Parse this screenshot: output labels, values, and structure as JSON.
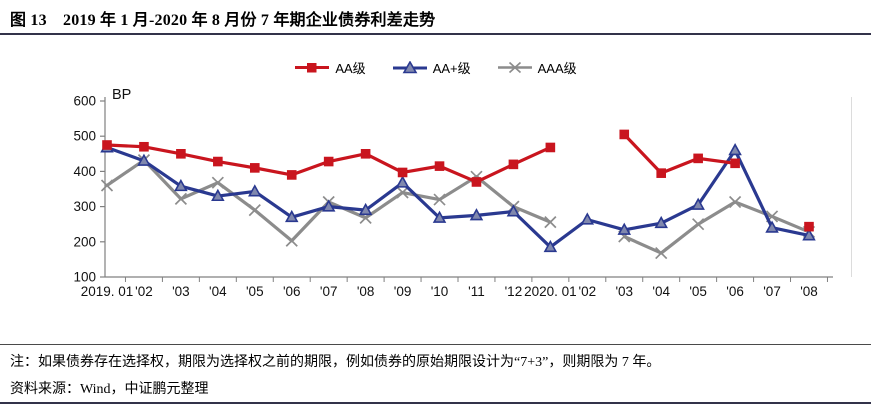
{
  "title": "图 13　2019 年 1 月-2020 年 8 月份 7 年期企业债券利差走势",
  "note": "注：如果债券存在选择权，期限为选择权之前的期限，例如债券的原始期限设计为“7+3”，则期限为 7 年。",
  "source": "资料来源：Wind，中证鹏元整理",
  "chart_data": {
    "type": "line",
    "title": "",
    "ylabel": "BP",
    "xlabel": "",
    "ylim": [
      100,
      600
    ],
    "yticks": [
      100,
      200,
      300,
      400,
      500,
      600
    ],
    "grid": false,
    "legend_position": "top",
    "categories": [
      "2019.01",
      "2019.02",
      "2019.03",
      "2019.04",
      "2019.05",
      "2019.06",
      "2019.07",
      "2019.08",
      "2019.09",
      "2019.10",
      "2019.11",
      "2019.12",
      "2020.01",
      "2020.02",
      "2020.03",
      "2020.04",
      "2020.05",
      "2020.06",
      "2020.07",
      "2020.08"
    ],
    "tick_labels": [
      "2019. 01",
      "'02",
      "'03",
      "'04",
      "'05",
      "'06",
      "'07",
      "'08",
      "'09",
      "'10",
      "'11",
      "'12",
      "2020. 01",
      "'02",
      "'03",
      "'04",
      "'05",
      "'06",
      "'07",
      "'08"
    ],
    "series": [
      {
        "name": "AAA级",
        "color": "#8c8c8c",
        "marker": "x",
        "values": [
          360,
          432,
          322,
          368,
          290,
          203,
          313,
          268,
          340,
          320,
          385,
          300,
          256,
          null,
          215,
          168,
          250,
          313,
          272,
          228
        ]
      },
      {
        "name": "AA+级",
        "color": "#2a3990",
        "marker": "triangle",
        "marker_fill": "#8088ae",
        "values": [
          468,
          430,
          358,
          330,
          343,
          270,
          300,
          290,
          368,
          268,
          275,
          286,
          185,
          263,
          234,
          253,
          305,
          460,
          240,
          218
        ]
      },
      {
        "name": "AA级",
        "color": "#c9151e",
        "marker": "square",
        "values": [
          475,
          470,
          450,
          428,
          410,
          390,
          428,
          450,
          397,
          415,
          370,
          420,
          468,
          null,
          505,
          395,
          437,
          423,
          null,
          243
        ]
      }
    ],
    "legend_order": [
      "AA级",
      "AA+级",
      "AAA级"
    ]
  }
}
